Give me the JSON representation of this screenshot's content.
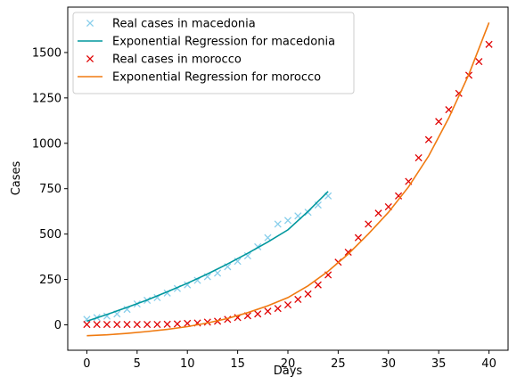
{
  "chart_data": {
    "type": "scatter",
    "xlabel": "Days",
    "ylabel": "Cases",
    "xlim": [
      -1.9,
      41.9
    ],
    "ylim": [
      -140,
      1750
    ],
    "xticks": [
      0,
      5,
      10,
      15,
      20,
      25,
      30,
      35,
      40
    ],
    "yticks": [
      0,
      250,
      500,
      750,
      1000,
      1250,
      1500
    ],
    "grid": false,
    "legend_position": "top-left",
    "series": [
      {
        "name": "Real cases in macedonia",
        "kind": "markers",
        "marker": "x",
        "color": "#87ceeb",
        "x": [
          0,
          1,
          2,
          3,
          4,
          5,
          6,
          7,
          8,
          9,
          10,
          11,
          12,
          13,
          14,
          15,
          16,
          17,
          18,
          19,
          20,
          21,
          22,
          23,
          24
        ],
        "y": [
          30,
          40,
          48,
          60,
          85,
          115,
          135,
          150,
          175,
          200,
          220,
          245,
          265,
          285,
          320,
          350,
          380,
          430,
          480,
          555,
          575,
          600,
          620,
          660,
          710
        ]
      },
      {
        "name": "Exponential Regression for macedonia",
        "kind": "line",
        "color": "#00979d",
        "x": [
          0,
          2,
          4,
          6,
          8,
          10,
          12,
          14,
          16,
          18,
          20,
          22,
          24
        ],
        "y": [
          20,
          57,
          96,
          137,
          182,
          229,
          280,
          335,
          394,
          456,
          523,
          625,
          735
        ]
      },
      {
        "name": "Real cases in morocco",
        "kind": "markers",
        "marker": "x",
        "color": "#e00000",
        "x": [
          0,
          1,
          2,
          3,
          4,
          5,
          6,
          7,
          8,
          9,
          10,
          11,
          12,
          13,
          14,
          15,
          16,
          17,
          18,
          19,
          20,
          21,
          22,
          23,
          24,
          25,
          26,
          27,
          28,
          29,
          30,
          31,
          32,
          33,
          34,
          35,
          36,
          37,
          38,
          39,
          40
        ],
        "y": [
          2,
          2,
          2,
          2,
          2,
          2,
          2,
          2,
          3,
          5,
          8,
          10,
          15,
          20,
          30,
          40,
          50,
          60,
          75,
          90,
          110,
          140,
          170,
          220,
          275,
          345,
          400,
          480,
          555,
          615,
          650,
          710,
          790,
          920,
          1020,
          1120,
          1185,
          1275,
          1375,
          1450,
          1545
        ]
      },
      {
        "name": "Exponential Regression for morocco",
        "kind": "line",
        "color": "#f07a10",
        "x": [
          0,
          2,
          4,
          6,
          8,
          10,
          12,
          14,
          16,
          18,
          20,
          22,
          24,
          26,
          28,
          30,
          32,
          34,
          36,
          38,
          40
        ],
        "y": [
          -60,
          -55,
          -47,
          -37,
          -25,
          -10,
          10,
          35,
          67,
          105,
          150,
          215,
          295,
          390,
          500,
          620,
          760,
          930,
          1140,
          1380,
          1665
        ]
      }
    ]
  }
}
